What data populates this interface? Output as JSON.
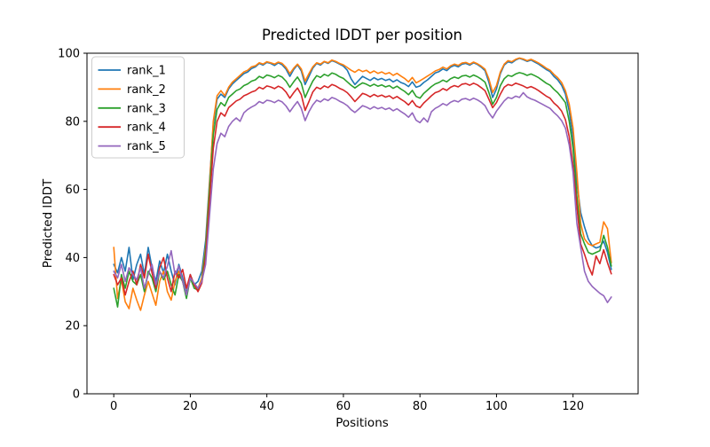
{
  "figure": {
    "title": "Predicted lDDT per position",
    "xlabel": "Positions",
    "ylabel": "Predicted lDDT"
  },
  "chart_data": {
    "type": "line",
    "title": "Predicted lDDT per position",
    "xlabel": "Positions",
    "ylabel": "Predicted lDDT",
    "xlim": [
      -7,
      137
    ],
    "ylim": [
      0,
      100
    ],
    "xticks": [
      0,
      20,
      40,
      60,
      80,
      100,
      120
    ],
    "yticks": [
      0,
      20,
      40,
      60,
      80,
      100
    ],
    "grid": false,
    "legend": {
      "position": "upper left",
      "entries": [
        "rank_1",
        "rank_2",
        "rank_3",
        "rank_4",
        "rank_5"
      ]
    },
    "x_start": 0,
    "x_step": 1,
    "series": [
      {
        "name": "rank_1",
        "color": "#1f77b4",
        "values": [
          38,
          35.5,
          40,
          36,
          43,
          33.5,
          38,
          41,
          35,
          43,
          37,
          33,
          39,
          35.5,
          41,
          36,
          32,
          38,
          34,
          29.5,
          35,
          32,
          33,
          36,
          45,
          62,
          79,
          86.5,
          88,
          87,
          89.5,
          91,
          92,
          93,
          94,
          94.5,
          95.5,
          96,
          97,
          96.5,
          97.3,
          97,
          96.4,
          97.2,
          96.6,
          95.3,
          93.2,
          95.2,
          96.6,
          94.8,
          90.8,
          93.2,
          95.6,
          97,
          96.5,
          97.5,
          97,
          97.8,
          97.4,
          96.8,
          96.2,
          95,
          92.5,
          90.8,
          92,
          93.2,
          92.6,
          92,
          92.8,
          92.2,
          92.6,
          92,
          92.4,
          91.6,
          92.2,
          91.4,
          91,
          90.2,
          91.6,
          90,
          90.4,
          91.4,
          92.2,
          93.2,
          94.2,
          94.6,
          95.4,
          94.9,
          95.9,
          96.4,
          96,
          96.8,
          97,
          96.5,
          97.2,
          96.7,
          95.9,
          94.9,
          91.5,
          87,
          89.5,
          94,
          96.5,
          97.5,
          97.2,
          98,
          98.5,
          98.1,
          97.6,
          98,
          97.4,
          96.8,
          96,
          95.2,
          94.6,
          93.2,
          92.2,
          90.6,
          88,
          83,
          75,
          62,
          53.2,
          49,
          45.5,
          43.5,
          42.8,
          43.2,
          44.8,
          41.5,
          36.5
        ]
      },
      {
        "name": "rank_2",
        "color": "#ff7f0e",
        "values": [
          43,
          28,
          33.5,
          27,
          25,
          31,
          27.5,
          24.5,
          29,
          33,
          29.5,
          26,
          33,
          36,
          30,
          27.5,
          33,
          36,
          33,
          29,
          34,
          32,
          31,
          34,
          43,
          61,
          80,
          87.5,
          89,
          87.5,
          90,
          91.5,
          92.5,
          93.5,
          94.5,
          95,
          96,
          96.3,
          97.2,
          96.8,
          97.5,
          97.2,
          96.8,
          97.4,
          97,
          95.8,
          94,
          95.6,
          96.8,
          95.4,
          91.8,
          94,
          96,
          97.2,
          96.8,
          97.6,
          97.2,
          98,
          97.6,
          97,
          96.6,
          95.8,
          95,
          94.4,
          95.2,
          94.6,
          95,
          94.2,
          94.8,
          94.1,
          94.5,
          93.9,
          94.3,
          93.5,
          94.1,
          93.3,
          92.6,
          91.6,
          92.9,
          91.3,
          91.9,
          92.6,
          93.3,
          94,
          94.8,
          95.2,
          95.9,
          95.4,
          96.3,
          96.8,
          96.4,
          97.1,
          97.3,
          96.8,
          97.4,
          96.9,
          96.2,
          95.3,
          92.5,
          88.5,
          90.5,
          94.5,
          96.8,
          97.8,
          97.5,
          98.2,
          98.6,
          98.3,
          97.8,
          98.2,
          97.7,
          97.1,
          96.4,
          95.6,
          95,
          93.8,
          92.8,
          91.4,
          89,
          85,
          78,
          65,
          50,
          45.5,
          44,
          43.5,
          44,
          44.5,
          50.5,
          48.5,
          38.5
        ]
      },
      {
        "name": "rank_3",
        "color": "#2ca02c",
        "values": [
          31,
          25.5,
          35,
          31,
          36,
          33,
          32,
          35,
          30,
          36,
          34,
          30,
          36,
          33.5,
          36,
          32,
          29,
          35,
          33,
          28,
          34,
          31,
          30.5,
          33,
          42,
          59,
          76,
          83.5,
          85.5,
          84.5,
          87,
          88,
          89,
          89.5,
          90.5,
          91,
          91.8,
          92.2,
          93.2,
          92.7,
          93.6,
          93.3,
          92.8,
          93.5,
          93,
          91.8,
          90,
          91.6,
          93,
          91.2,
          87,
          89.5,
          91.8,
          93.4,
          92.9,
          93.8,
          93.3,
          94.2,
          93.8,
          93.1,
          92.6,
          91.6,
          90.6,
          89.8,
          90.6,
          91.3,
          90.9,
          90.3,
          90.9,
          90.3,
          90.7,
          90.1,
          90.5,
          89.7,
          90.3,
          89.5,
          88.8,
          87.8,
          89.1,
          87.3,
          86.8,
          88.2,
          89.2,
          90.2,
          91,
          91.4,
          92.1,
          91.6,
          92.5,
          93,
          92.6,
          93.3,
          93.5,
          93,
          93.6,
          93.1,
          92.4,
          91.5,
          88.5,
          85,
          87,
          90.5,
          92.5,
          93.5,
          93.2,
          93.9,
          94.3,
          94,
          93.5,
          93.9,
          93.4,
          92.8,
          92,
          91.2,
          90.6,
          89.4,
          88.4,
          87,
          85.5,
          80,
          72,
          58,
          47,
          44,
          41.5,
          41,
          41.5,
          42,
          46.5,
          43,
          37.5
        ]
      },
      {
        "name": "rank_4",
        "color": "#d62728",
        "values": [
          35,
          32,
          34,
          29,
          33,
          36,
          32,
          38,
          34,
          41,
          35.5,
          31,
          37,
          40,
          34,
          30,
          36,
          34,
          36.5,
          31,
          35,
          32,
          30,
          32.5,
          40,
          56,
          72,
          80,
          82.5,
          81.5,
          84,
          85,
          86,
          86.5,
          87.5,
          88,
          88.6,
          89,
          90,
          89.5,
          90.4,
          90.1,
          89.6,
          90.3,
          89.8,
          88.6,
          86.8,
          88.4,
          89.8,
          87.8,
          83.2,
          85.8,
          88.6,
          90,
          89.5,
          90.4,
          89.9,
          90.8,
          90.4,
          89.7,
          89.2,
          88.4,
          87.2,
          85.8,
          87,
          88.2,
          87.8,
          87.2,
          87.9,
          87.3,
          87.7,
          87.1,
          87.5,
          86.7,
          87.3,
          86.5,
          85.8,
          84.8,
          86.1,
          84.5,
          84,
          85.4,
          86.4,
          87.5,
          88.4,
          88.8,
          89.6,
          89.1,
          90,
          90.5,
          90.1,
          90.9,
          91.1,
          90.6,
          91.2,
          90.7,
          89.9,
          89,
          86.5,
          84,
          85.5,
          88,
          90,
          90.8,
          90.5,
          91.2,
          90.8,
          90.4,
          89.8,
          90.2,
          89.7,
          89,
          88.2,
          87.4,
          86.8,
          85.4,
          84.4,
          83,
          80.5,
          75.5,
          67,
          55,
          44,
          41,
          37.5,
          34.9,
          40.5,
          38.2,
          42.3,
          38.5,
          35.2
        ]
      },
      {
        "name": "rank_5",
        "color": "#9467bd",
        "values": [
          36,
          34,
          38,
          33,
          37,
          35,
          33.5,
          37,
          31,
          35,
          38,
          32,
          36,
          34,
          37.5,
          42,
          35,
          37.5,
          33,
          29,
          34,
          32.5,
          31,
          33,
          38,
          52,
          66,
          73.5,
          76.5,
          75.5,
          78.5,
          80,
          81,
          80,
          82.5,
          83.5,
          84.2,
          84.8,
          85.8,
          85.3,
          86.2,
          86,
          85.5,
          86.2,
          85.7,
          84.5,
          82.8,
          84.4,
          85.8,
          83.8,
          80.2,
          82.8,
          84.8,
          86.2,
          85.7,
          86.6,
          86.1,
          87,
          86.6,
          85.9,
          85.4,
          84.6,
          83.4,
          82.6,
          83.6,
          84.6,
          84.2,
          83.6,
          84.3,
          83.7,
          84.1,
          83.5,
          83.9,
          83.1,
          83.7,
          82.9,
          82.2,
          81.2,
          82.5,
          80.3,
          79.6,
          81,
          79.8,
          82.8,
          83.8,
          84.4,
          85.2,
          84.7,
          85.6,
          86.1,
          85.7,
          86.5,
          86.7,
          86.2,
          86.8,
          86.3,
          85.6,
          84.6,
          82.5,
          81,
          83,
          84.5,
          86,
          87,
          86.7,
          87.4,
          87,
          88.4,
          87.2,
          86.6,
          86.2,
          85.6,
          85,
          84.4,
          83.8,
          82.6,
          81.6,
          80.2,
          78,
          73,
          65,
          50,
          43,
          36,
          33,
          31.5,
          30.5,
          29.5,
          28.8,
          26.8,
          28.4
        ]
      }
    ]
  }
}
